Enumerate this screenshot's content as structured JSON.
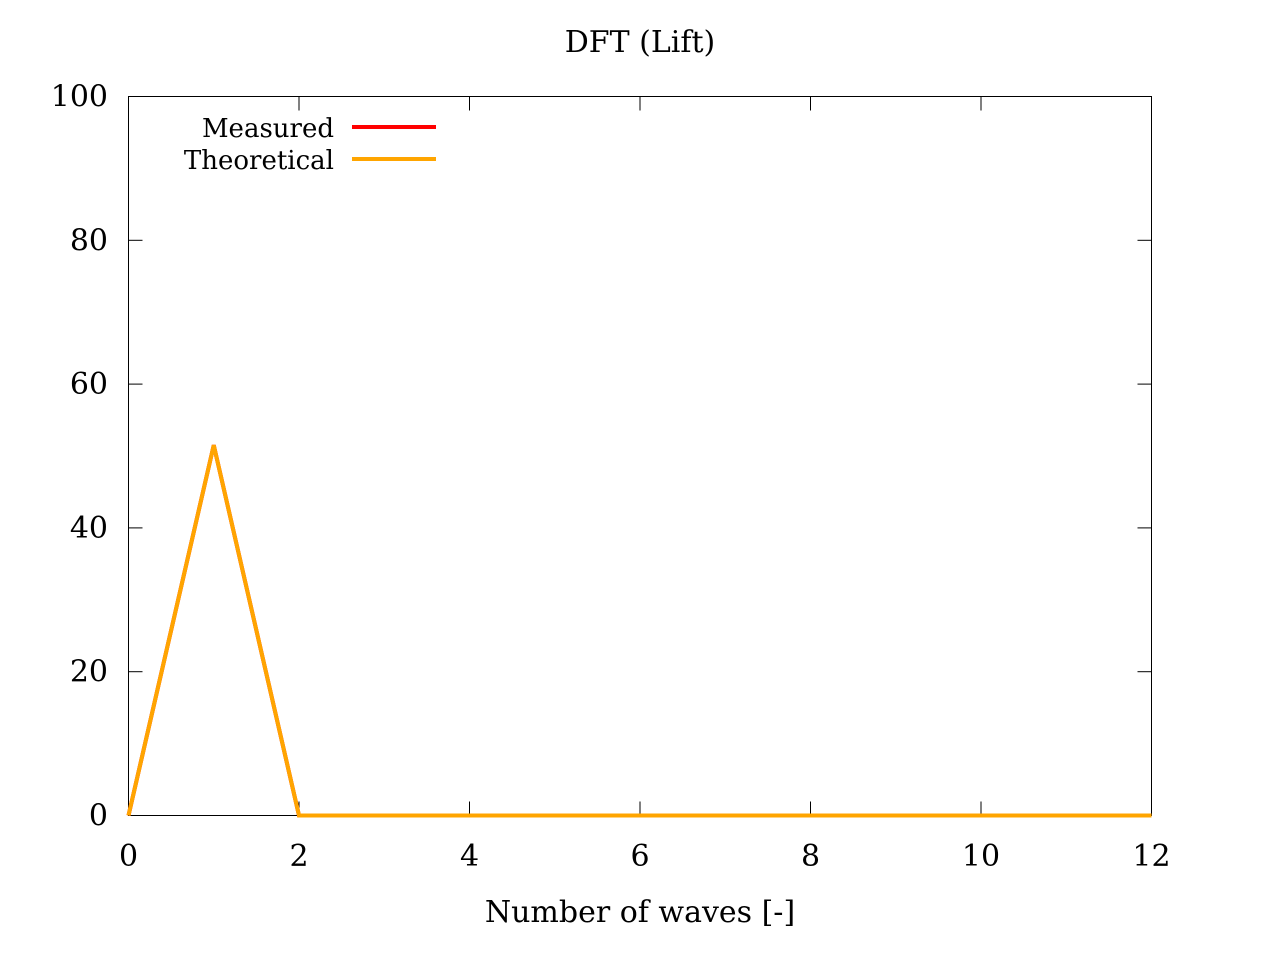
{
  "chart_data": {
    "type": "line",
    "title": "DFT (Lift)",
    "xlabel": "Number of waves [-]",
    "ylabel": "",
    "xlim": [
      0,
      12
    ],
    "ylim": [
      0,
      100
    ],
    "xticks": [
      "0",
      "2",
      "4",
      "6",
      "8",
      "10",
      "12"
    ],
    "yticks": [
      "0",
      "20",
      "40",
      "60",
      "80",
      "100"
    ],
    "grid": false,
    "legend_position": "top-left",
    "series": [
      {
        "name": "Measured",
        "color": "#ff0000",
        "x": [
          0,
          1,
          2,
          3,
          4,
          5,
          6,
          7,
          8,
          9,
          10,
          11,
          12
        ],
        "y": [
          0,
          51.5,
          0,
          0,
          0,
          0,
          0,
          0,
          0,
          0,
          0,
          0,
          0
        ]
      },
      {
        "name": "Theoretical",
        "color": "#ffa500",
        "x": [
          0,
          1,
          2,
          3,
          4,
          5,
          6,
          7,
          8,
          9,
          10,
          11,
          12
        ],
        "y": [
          0,
          51.5,
          0,
          0,
          0,
          0,
          0,
          0,
          0,
          0,
          0,
          0,
          0
        ]
      }
    ]
  }
}
